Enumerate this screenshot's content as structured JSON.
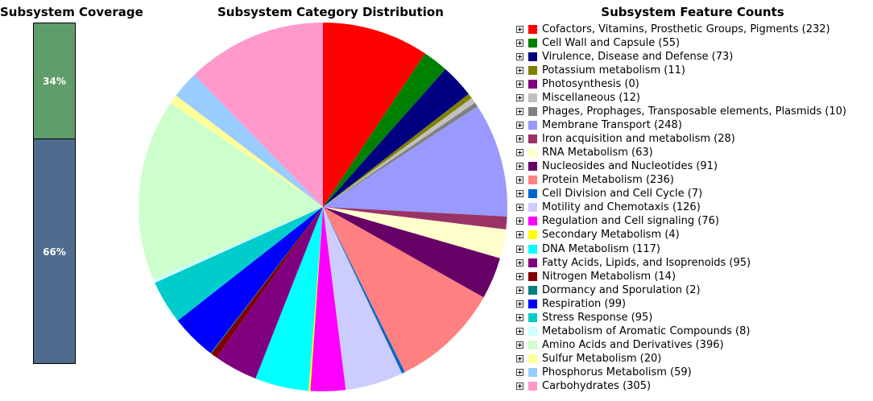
{
  "titles": {
    "coverage": "Subsystem Coverage",
    "pie": "Subsystem Category Distribution",
    "legend": "Subsystem Feature Counts"
  },
  "coverage": {
    "top": {
      "label": "34%",
      "fraction": 0.34,
      "color": "#5f9e6b"
    },
    "bottom": {
      "label": "66%",
      "fraction": 0.66,
      "color": "#4f6b8e"
    }
  },
  "chart_data": {
    "type": "pie",
    "title": "Subsystem Category Distribution",
    "slices": [
      {
        "name": "Cofactors, Vitamins, Prosthetic Groups, Pigments",
        "value": 232,
        "color": "#ff0000"
      },
      {
        "name": "Cell Wall and Capsule",
        "value": 55,
        "color": "#008000"
      },
      {
        "name": "Virulence, Disease and Defense",
        "value": 73,
        "color": "#000080"
      },
      {
        "name": "Potassium metabolism",
        "value": 11,
        "color": "#808000"
      },
      {
        "name": "Photosynthesis",
        "value": 0,
        "color": "#800080"
      },
      {
        "name": "Miscellaneous",
        "value": 12,
        "color": "#c0c0c0"
      },
      {
        "name": "Phages, Prophages, Transposable elements, Plasmids",
        "value": 10,
        "color": "#808080"
      },
      {
        "name": "Membrane Transport",
        "value": 248,
        "color": "#9999ff"
      },
      {
        "name": "Iron acquisition and metabolism",
        "value": 28,
        "color": "#993366"
      },
      {
        "name": "RNA Metabolism",
        "value": 63,
        "color": "#ffffcc"
      },
      {
        "name": "Nucleosides and Nucleotides",
        "value": 91,
        "color": "#660066"
      },
      {
        "name": "Protein Metabolism",
        "value": 236,
        "color": "#ff8080"
      },
      {
        "name": "Cell Division and Cell Cycle",
        "value": 7,
        "color": "#0066cc"
      },
      {
        "name": "Motility and Chemotaxis",
        "value": 126,
        "color": "#ccccff"
      },
      {
        "name": "Regulation and Cell signaling",
        "value": 76,
        "color": "#ff00ff"
      },
      {
        "name": "Secondary Metabolism",
        "value": 4,
        "color": "#ffff00"
      },
      {
        "name": "DNA Metabolism",
        "value": 117,
        "color": "#00ffff"
      },
      {
        "name": "Fatty Acids, Lipids, and Isoprenoids",
        "value": 95,
        "color": "#800080"
      },
      {
        "name": "Nitrogen Metabolism",
        "value": 14,
        "color": "#800000"
      },
      {
        "name": "Dormancy and Sporulation",
        "value": 2,
        "color": "#008080"
      },
      {
        "name": "Respiration",
        "value": 99,
        "color": "#0000ff"
      },
      {
        "name": "Stress Response",
        "value": 95,
        "color": "#00cccc"
      },
      {
        "name": "Metabolism of Aromatic Compounds",
        "value": 8,
        "color": "#ccffff"
      },
      {
        "name": "Amino Acids and Derivatives",
        "value": 396,
        "color": "#ccffcc"
      },
      {
        "name": "Sulfur Metabolism",
        "value": 20,
        "color": "#ffff99"
      },
      {
        "name": "Phosphorus Metabolism",
        "value": 59,
        "color": "#99ccff"
      },
      {
        "name": "Carbohydrates",
        "value": 305,
        "color": "#ff99cc"
      }
    ]
  },
  "legend": {
    "items": [
      {
        "text": "Cofactors, Vitamins, Prosthetic Groups, Pigments (232)",
        "color": "#ff0000"
      },
      {
        "text": "Cell Wall and Capsule (55)",
        "color": "#008000"
      },
      {
        "text": "Virulence, Disease and Defense (73)",
        "color": "#000080"
      },
      {
        "text": "Potassium metabolism (11)",
        "color": "#808000"
      },
      {
        "text": "Photosynthesis (0)",
        "color": "#800080"
      },
      {
        "text": "Miscellaneous (12)",
        "color": "#c0c0c0"
      },
      {
        "text": "Phages, Prophages, Transposable elements, Plasmids (10)",
        "color": "#808080"
      },
      {
        "text": "Membrane Transport (248)",
        "color": "#9999ff"
      },
      {
        "text": "Iron acquisition and metabolism (28)",
        "color": "#993366"
      },
      {
        "text": "RNA Metabolism (63)",
        "color": "#ffffcc"
      },
      {
        "text": "Nucleosides and Nucleotides (91)",
        "color": "#660066"
      },
      {
        "text": "Protein Metabolism (236)",
        "color": "#ff8080"
      },
      {
        "text": "Cell Division and Cell Cycle (7)",
        "color": "#0066cc"
      },
      {
        "text": "Motility and Chemotaxis (126)",
        "color": "#ccccff"
      },
      {
        "text": "Regulation and Cell signaling (76)",
        "color": "#ff00ff"
      },
      {
        "text": "Secondary Metabolism (4)",
        "color": "#ffff00"
      },
      {
        "text": "DNA Metabolism (117)",
        "color": "#00ffff"
      },
      {
        "text": "Fatty Acids, Lipids, and Isoprenoids (95)",
        "color": "#800080"
      },
      {
        "text": "Nitrogen Metabolism (14)",
        "color": "#800000"
      },
      {
        "text": "Dormancy and Sporulation (2)",
        "color": "#008080"
      },
      {
        "text": "Respiration (99)",
        "color": "#0000ff"
      },
      {
        "text": "Stress Response (95)",
        "color": "#00cccc"
      },
      {
        "text": "Metabolism of Aromatic Compounds (8)",
        "color": "#ccffff"
      },
      {
        "text": "Amino Acids and Derivatives (396)",
        "color": "#ccffcc"
      },
      {
        "text": "Sulfur Metabolism (20)",
        "color": "#ffff99"
      },
      {
        "text": "Phosphorus Metabolism (59)",
        "color": "#99ccff"
      },
      {
        "text": "Carbohydrates (305)",
        "color": "#ff99cc"
      }
    ]
  }
}
